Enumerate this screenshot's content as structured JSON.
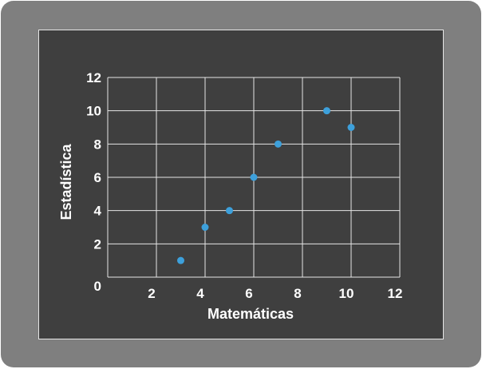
{
  "chart_data": {
    "type": "scatter",
    "title": "",
    "xlabel": "Matemáticas",
    "ylabel": "Estadística",
    "xlim": [
      0,
      12
    ],
    "ylim": [
      0,
      12
    ],
    "x_ticks": [
      2,
      4,
      6,
      8,
      10,
      12
    ],
    "y_ticks": [
      0,
      2,
      4,
      6,
      8,
      10,
      12
    ],
    "grid": true,
    "points": [
      {
        "x": 3,
        "y": 1
      },
      {
        "x": 4,
        "y": 3
      },
      {
        "x": 5,
        "y": 4
      },
      {
        "x": 6,
        "y": 6
      },
      {
        "x": 7,
        "y": 8
      },
      {
        "x": 9,
        "y": 10
      },
      {
        "x": 10,
        "y": 9
      }
    ],
    "colors": {
      "background": "#3f3f3f",
      "frame": "#7f7f7f",
      "grid": "#e6e6e6",
      "point": "#3da0db",
      "text": "#ffffff"
    }
  }
}
